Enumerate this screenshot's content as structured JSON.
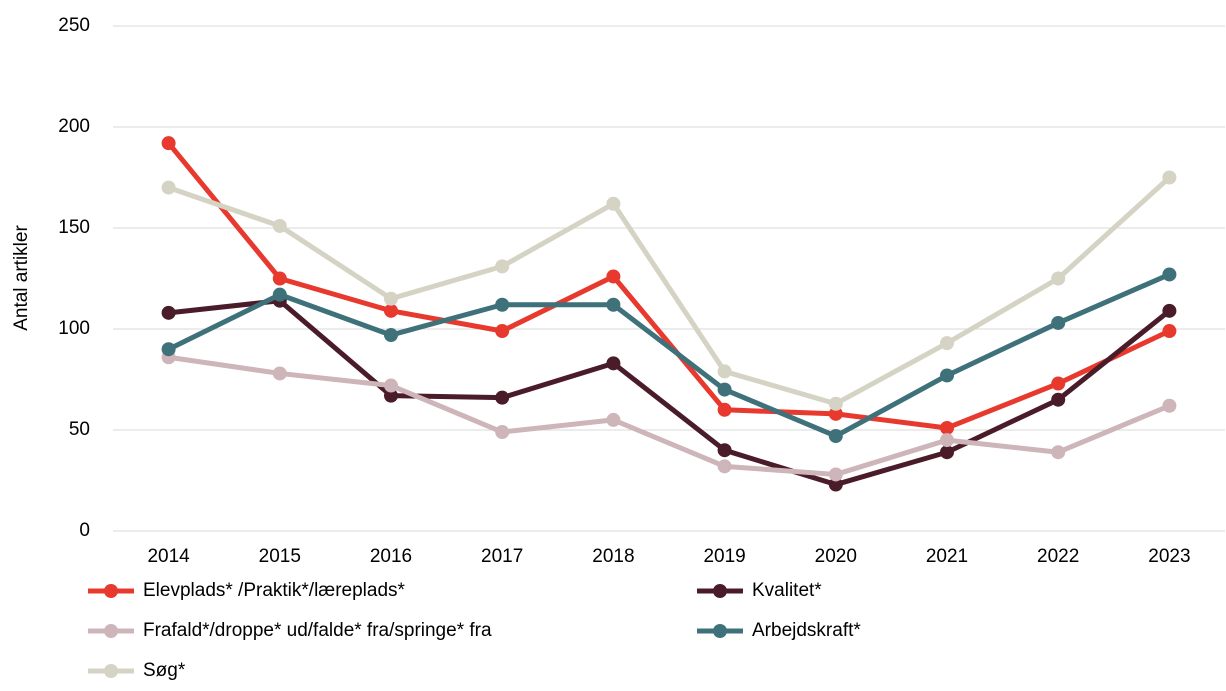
{
  "chart_data": {
    "type": "line",
    "y_label": "Antal artikler",
    "categories": [
      "2014",
      "2015",
      "2016",
      "2017",
      "2018",
      "2019",
      "2020",
      "2021",
      "2022",
      "2023"
    ],
    "series": [
      {
        "name": "Elevplads* /Praktik*/læreplads*",
        "color": "#e8392e",
        "values": [
          192,
          125,
          109,
          99,
          126,
          60,
          58,
          51,
          73,
          99
        ]
      },
      {
        "name": "Kvalitet*",
        "color": "#4a1c2a",
        "values": [
          108,
          114,
          67,
          66,
          83,
          40,
          23,
          39,
          65,
          109
        ]
      },
      {
        "name": "Frafald*/droppe* ud/falde* fra/springe* fra",
        "color": "#cdb5b9",
        "values": [
          86,
          78,
          72,
          49,
          55,
          32,
          28,
          45,
          39,
          62
        ]
      },
      {
        "name": "Arbejdskraft*",
        "color": "#3f717a",
        "values": [
          90,
          117,
          97,
          112,
          112,
          70,
          47,
          77,
          103,
          127
        ]
      },
      {
        "name": "Søg*",
        "color": "#d4d3c4",
        "values": [
          170,
          151,
          115,
          131,
          162,
          79,
          63,
          93,
          125,
          175
        ]
      }
    ],
    "ylim": [
      0,
      250
    ],
    "yticks": [
      0,
      50,
      100,
      150,
      200,
      250
    ],
    "grid": true
  }
}
